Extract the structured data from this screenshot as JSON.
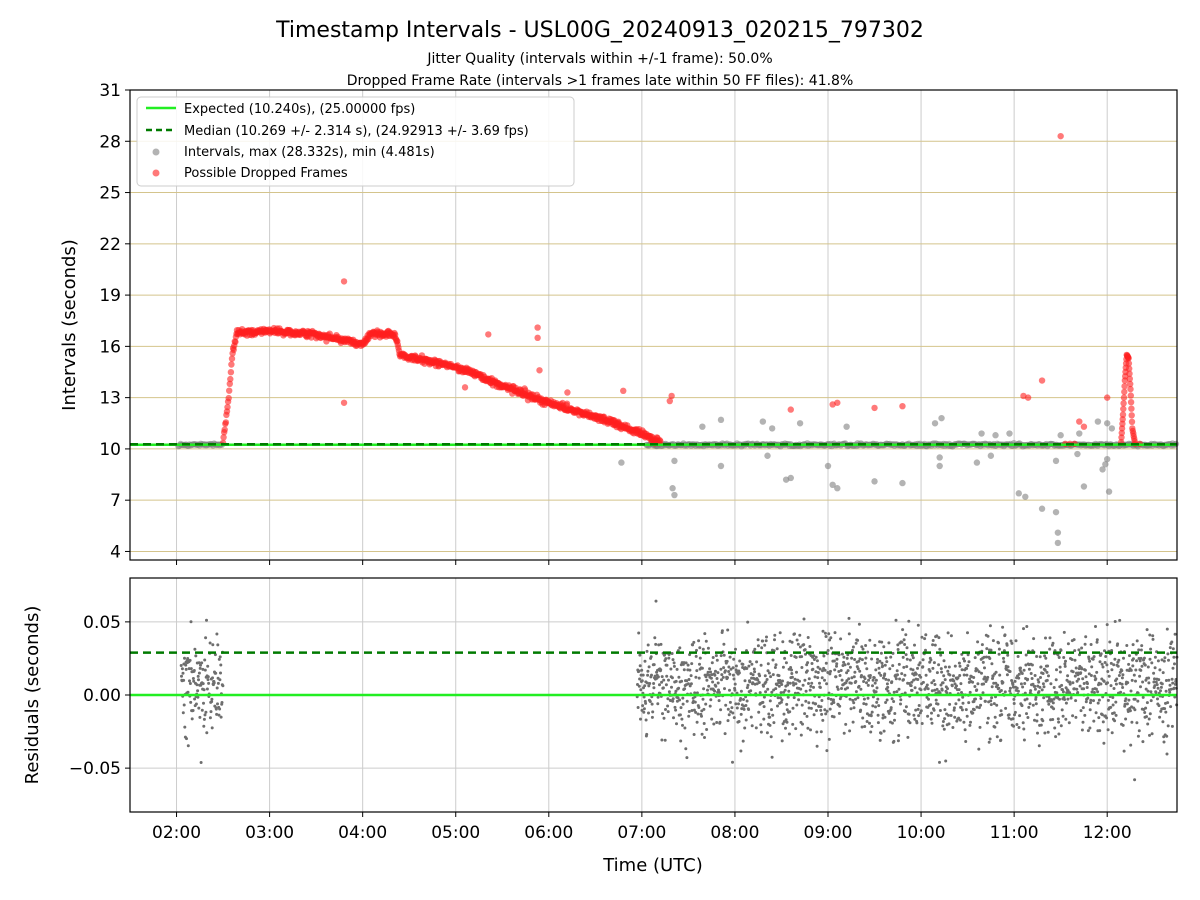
{
  "chart_data": {
    "type": "scatter",
    "title": "Timestamp Intervals - USL00G_20240913_020215_797302",
    "subtitle_lines": [
      "Jitter Quality (intervals within +/-1 frame): 50.0%",
      "Dropped Frame Rate (intervals >1 frames late within 50 FF files): 41.8%"
    ],
    "xlabel": "Time (UTC)",
    "x_tick_labels": [
      "02:00",
      "03:00",
      "04:00",
      "05:00",
      "06:00",
      "07:00",
      "08:00",
      "09:00",
      "10:00",
      "11:00",
      "12:00"
    ],
    "x_range_hours": [
      1.5,
      12.75
    ],
    "top_panel": {
      "ylabel": "Intervals (seconds)",
      "ylim": [
        3.5,
        31
      ],
      "y_ticks": [
        4,
        7,
        10,
        13,
        16,
        19,
        22,
        25,
        28,
        31
      ],
      "legend_position": "upper-left",
      "legend": [
        {
          "label": "Expected (10.240s), (25.00000 fps)",
          "style": "solid-line",
          "color": "#22ee22"
        },
        {
          "label": "Median (10.269 +/- 2.314 s), (24.92913 +/- 3.69 fps)",
          "style": "dashed-line",
          "color": "#007a00"
        },
        {
          "label": "Intervals, max (28.332s), min (4.481s)",
          "style": "marker",
          "color": "#808080"
        },
        {
          "label": "Possible Dropped Frames",
          "style": "marker",
          "color": "#ff2020"
        }
      ],
      "expected_interval": 10.24,
      "median_interval": 10.269,
      "dropped_frame_trend": [
        {
          "x": 2.5,
          "y": 10.4
        },
        {
          "x": 2.55,
          "y": 12.5
        },
        {
          "x": 2.6,
          "y": 15.5
        },
        {
          "x": 2.65,
          "y": 16.8
        },
        {
          "x": 3.0,
          "y": 16.9
        },
        {
          "x": 3.5,
          "y": 16.7
        },
        {
          "x": 4.0,
          "y": 16.1
        },
        {
          "x": 4.1,
          "y": 16.8
        },
        {
          "x": 4.35,
          "y": 16.7
        },
        {
          "x": 4.4,
          "y": 15.5
        },
        {
          "x": 5.0,
          "y": 14.8
        },
        {
          "x": 5.5,
          "y": 13.7
        },
        {
          "x": 6.0,
          "y": 12.7
        },
        {
          "x": 6.5,
          "y": 11.9
        },
        {
          "x": 7.0,
          "y": 10.9
        },
        {
          "x": 7.2,
          "y": 10.4
        }
      ],
      "dropped_frame_outliers": [
        {
          "x": 3.8,
          "y": 19.8
        },
        {
          "x": 3.8,
          "y": 12.7
        },
        {
          "x": 5.35,
          "y": 16.7
        },
        {
          "x": 5.1,
          "y": 13.6
        },
        {
          "x": 5.88,
          "y": 17.1
        },
        {
          "x": 5.88,
          "y": 16.5
        },
        {
          "x": 5.9,
          "y": 14.6
        },
        {
          "x": 6.2,
          "y": 13.3
        },
        {
          "x": 6.8,
          "y": 13.4
        },
        {
          "x": 7.32,
          "y": 13.1
        },
        {
          "x": 7.3,
          "y": 12.8
        },
        {
          "x": 8.6,
          "y": 12.3
        },
        {
          "x": 9.1,
          "y": 12.7
        },
        {
          "x": 9.05,
          "y": 12.6
        },
        {
          "x": 9.5,
          "y": 12.4
        },
        {
          "x": 9.8,
          "y": 12.5
        },
        {
          "x": 11.1,
          "y": 13.1
        },
        {
          "x": 11.15,
          "y": 13.0
        },
        {
          "x": 11.3,
          "y": 14.0
        },
        {
          "x": 11.5,
          "y": 28.3
        },
        {
          "x": 11.55,
          "y": 10.3
        },
        {
          "x": 11.6,
          "y": 10.3
        },
        {
          "x": 11.65,
          "y": 10.3
        },
        {
          "x": 11.7,
          "y": 11.6
        },
        {
          "x": 11.75,
          "y": 11.3
        },
        {
          "x": 12.0,
          "y": 13.0
        },
        {
          "x": 12.3,
          "y": 10.3
        },
        {
          "x": 12.35,
          "y": 10.3
        }
      ],
      "dropped_frame_spike_near_12": [
        {
          "x": 12.15,
          "y": 10.4
        },
        {
          "x": 12.17,
          "y": 12.0
        },
        {
          "x": 12.19,
          "y": 14.0
        },
        {
          "x": 12.21,
          "y": 15.5
        },
        {
          "x": 12.23,
          "y": 15.3
        },
        {
          "x": 12.25,
          "y": 13.5
        },
        {
          "x": 12.27,
          "y": 11.2
        },
        {
          "x": 12.3,
          "y": 10.3
        }
      ],
      "interval_outliers": [
        {
          "x": 6.78,
          "y": 9.2
        },
        {
          "x": 7.33,
          "y": 7.7
        },
        {
          "x": 7.35,
          "y": 7.3
        },
        {
          "x": 7.35,
          "y": 9.3
        },
        {
          "x": 7.65,
          "y": 11.3
        },
        {
          "x": 7.85,
          "y": 11.7
        },
        {
          "x": 7.85,
          "y": 9.0
        },
        {
          "x": 8.3,
          "y": 11.6
        },
        {
          "x": 8.35,
          "y": 9.6
        },
        {
          "x": 8.4,
          "y": 11.2
        },
        {
          "x": 8.55,
          "y": 8.2
        },
        {
          "x": 8.6,
          "y": 8.3
        },
        {
          "x": 8.7,
          "y": 11.5
        },
        {
          "x": 9.0,
          "y": 9.0
        },
        {
          "x": 9.05,
          "y": 7.9
        },
        {
          "x": 9.1,
          "y": 7.7
        },
        {
          "x": 9.2,
          "y": 11.3
        },
        {
          "x": 9.5,
          "y": 8.1
        },
        {
          "x": 9.8,
          "y": 8.0
        },
        {
          "x": 10.15,
          "y": 11.5
        },
        {
          "x": 10.2,
          "y": 9.5
        },
        {
          "x": 10.2,
          "y": 9.0
        },
        {
          "x": 10.22,
          "y": 11.8
        },
        {
          "x": 10.6,
          "y": 9.2
        },
        {
          "x": 10.65,
          "y": 10.9
        },
        {
          "x": 10.75,
          "y": 9.6
        },
        {
          "x": 10.8,
          "y": 10.8
        },
        {
          "x": 10.95,
          "y": 10.9
        },
        {
          "x": 11.05,
          "y": 7.4
        },
        {
          "x": 11.12,
          "y": 7.2
        },
        {
          "x": 11.3,
          "y": 6.5
        },
        {
          "x": 11.45,
          "y": 6.3
        },
        {
          "x": 11.47,
          "y": 5.1
        },
        {
          "x": 11.47,
          "y": 4.5
        },
        {
          "x": 11.45,
          "y": 9.3
        },
        {
          "x": 11.5,
          "y": 10.8
        },
        {
          "x": 11.68,
          "y": 9.7
        },
        {
          "x": 11.7,
          "y": 10.9
        },
        {
          "x": 11.75,
          "y": 7.8
        },
        {
          "x": 11.9,
          "y": 11.6
        },
        {
          "x": 11.95,
          "y": 8.8
        },
        {
          "x": 11.98,
          "y": 9.1
        },
        {
          "x": 12.0,
          "y": 11.5
        },
        {
          "x": 12.02,
          "y": 7.5
        },
        {
          "x": 12.05,
          "y": 11.2
        },
        {
          "x": 12.0,
          "y": 9.4
        }
      ]
    },
    "bottom_panel": {
      "ylabel": "Residuals (seconds)",
      "ylim": [
        -0.08,
        0.08
      ],
      "y_tick_labels": [
        "0.05",
        "0.00",
        "−0.05"
      ],
      "y_ticks": [
        0.05,
        0.0,
        -0.05
      ],
      "expected_residual": 0.0,
      "median_residual": 0.029,
      "residual_spread": 0.025,
      "residual_segments": [
        {
          "x_start": 2.05,
          "x_end": 2.5
        },
        {
          "x_start": 6.95,
          "x_end": 12.75
        }
      ],
      "residual_color": "#6e6e6e"
    },
    "colors": {
      "expected_line": "#22ee22",
      "median_line": "#007a00",
      "intervals": "#808080",
      "dropped": "#ff2020",
      "y_grid_top": "#d4c48c",
      "grid": "#cccccc"
    },
    "grid": true
  }
}
